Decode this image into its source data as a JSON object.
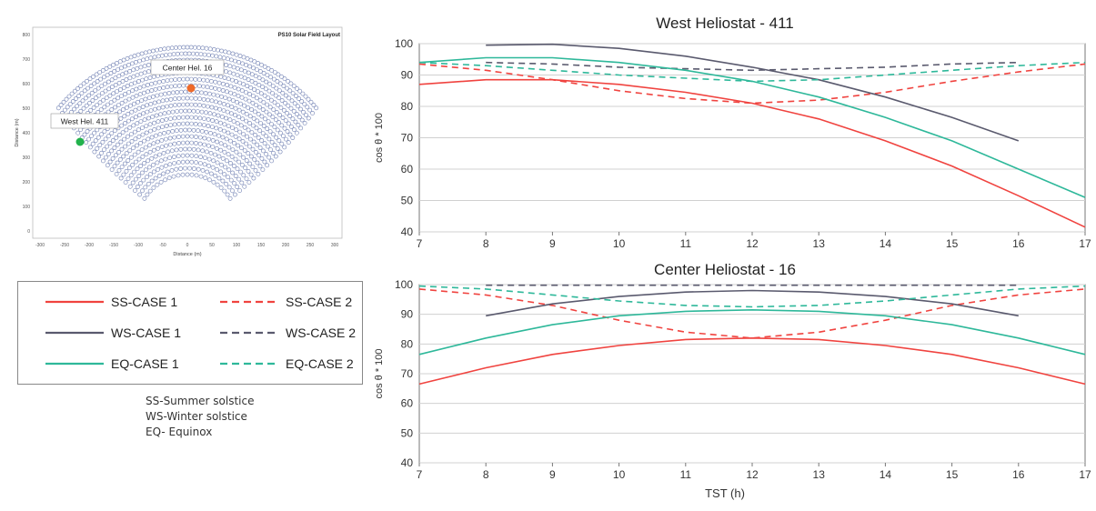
{
  "colors": {
    "ss": "#f0433f",
    "ws": "#5a5a6e",
    "eq": "#2eb89a",
    "field_dot": "#6f7fb2",
    "west_marker": "#22b24c",
    "center_marker": "#ee6a2a",
    "grid": "#d0d0d0"
  },
  "field_layout": {
    "title": "PS10 Solar Field Layout",
    "xlabel": "Distance (m)",
    "ylabel": "Distance (m)",
    "x_ticks": [
      "-300",
      "-250",
      "-200",
      "-150",
      "-100",
      "-50",
      "0",
      "50",
      "100",
      "150",
      "200",
      "250",
      "300"
    ],
    "y_ticks": [
      "0",
      "100",
      "200",
      "300",
      "400",
      "500",
      "600",
      "700",
      "800"
    ],
    "annotations": [
      {
        "key": "center",
        "label": "Center Hel. 16"
      },
      {
        "key": "west",
        "label": "West Hel. 411"
      }
    ]
  },
  "legend": {
    "entries": [
      {
        "label": "SS-CASE 1",
        "series": "ss",
        "dash": false
      },
      {
        "label": "SS-CASE 2",
        "series": "ss",
        "dash": true
      },
      {
        "label": "WS-CASE 1",
        "series": "ws",
        "dash": false
      },
      {
        "label": "WS-CASE 2",
        "series": "ws",
        "dash": true
      },
      {
        "label": "EQ-CASE 1",
        "series": "eq",
        "dash": false
      },
      {
        "label": "EQ-CASE 2",
        "series": "eq",
        "dash": true
      }
    ]
  },
  "notes": [
    "SS-Summer solstice",
    "WS-Winter solstice",
    "EQ- Equinox"
  ],
  "chart_data": [
    {
      "type": "line",
      "title": "West Heliostat - 411",
      "xlabel": "",
      "ylabel": "cos θ * 100",
      "xlim": [
        7,
        17
      ],
      "ylim": [
        40,
        100
      ],
      "x_ticks": [
        7,
        8,
        9,
        10,
        11,
        12,
        13,
        14,
        15,
        16,
        17
      ],
      "y_ticks": [
        40,
        50,
        60,
        70,
        80,
        90,
        100
      ],
      "series": [
        {
          "name": "SS-CASE 1",
          "color_key": "ss",
          "dash": false,
          "x": [
            7,
            8,
            9,
            10,
            11,
            12,
            13,
            14,
            15,
            16,
            17
          ],
          "y": [
            87,
            88.5,
            88.5,
            87,
            84.5,
            81,
            76,
            69,
            61,
            51.5,
            41.5
          ]
        },
        {
          "name": "SS-CASE 2",
          "color_key": "ss",
          "dash": true,
          "x": [
            7,
            8,
            9,
            10,
            11,
            12,
            13,
            14,
            15,
            16,
            17
          ],
          "y": [
            93.5,
            91.5,
            88.5,
            85,
            82.5,
            81,
            82,
            84.5,
            88,
            91,
            93.5
          ]
        },
        {
          "name": "WS-CASE 1",
          "color_key": "ws",
          "dash": false,
          "x": [
            8,
            9,
            10,
            11,
            12,
            13,
            14,
            15,
            16
          ],
          "y": [
            99.5,
            99.8,
            98.5,
            96,
            92.5,
            88.5,
            83,
            76.5,
            69
          ]
        },
        {
          "name": "WS-CASE 2",
          "color_key": "ws",
          "dash": true,
          "x": [
            8,
            9,
            10,
            11,
            12,
            13,
            14,
            15,
            16
          ],
          "y": [
            94,
            93.5,
            92.5,
            92,
            91.5,
            92,
            92.5,
            93.5,
            94
          ]
        },
        {
          "name": "EQ-CASE 1",
          "color_key": "eq",
          "dash": false,
          "x": [
            7,
            8,
            9,
            10,
            11,
            12,
            13,
            14,
            15,
            16,
            17
          ],
          "y": [
            94,
            95.5,
            95.5,
            94,
            91.5,
            88,
            83,
            76.5,
            69,
            60,
            51
          ]
        },
        {
          "name": "EQ-CASE 2",
          "color_key": "eq",
          "dash": true,
          "x": [
            7,
            8,
            9,
            10,
            11,
            12,
            13,
            14,
            15,
            16,
            17
          ],
          "y": [
            94,
            93,
            91.5,
            90,
            89,
            88,
            88.5,
            90,
            91.5,
            93,
            94
          ]
        }
      ]
    },
    {
      "type": "line",
      "title": "Center Heliostat - 16",
      "xlabel": "TST (h)",
      "ylabel": "cos θ * 100",
      "xlim": [
        7,
        17
      ],
      "ylim": [
        40,
        100
      ],
      "x_ticks": [
        7,
        8,
        9,
        10,
        11,
        12,
        13,
        14,
        15,
        16,
        17
      ],
      "y_ticks": [
        40,
        50,
        60,
        70,
        80,
        90,
        100
      ],
      "series": [
        {
          "name": "SS-CASE 1",
          "color_key": "ss",
          "dash": false,
          "x": [
            7,
            8,
            9,
            10,
            11,
            12,
            13,
            14,
            15,
            16,
            17
          ],
          "y": [
            66.5,
            72,
            76.5,
            79.5,
            81.5,
            82,
            81.5,
            79.5,
            76.5,
            72,
            66.5
          ]
        },
        {
          "name": "SS-CASE 2",
          "color_key": "ss",
          "dash": true,
          "x": [
            7,
            8,
            9,
            10,
            11,
            12,
            13,
            14,
            15,
            16,
            17
          ],
          "y": [
            98.5,
            96.5,
            93,
            88,
            84,
            82,
            84,
            88,
            93,
            96.5,
            98.5
          ]
        },
        {
          "name": "WS-CASE 1",
          "color_key": "ws",
          "dash": false,
          "x": [
            8,
            9,
            10,
            11,
            12,
            13,
            14,
            15,
            16
          ],
          "y": [
            89.5,
            93.5,
            96,
            97.5,
            98,
            97.5,
            96,
            93.5,
            89.5
          ]
        },
        {
          "name": "WS-CASE 2",
          "color_key": "ws",
          "dash": true,
          "x": [
            8,
            9,
            10,
            11,
            12,
            13,
            14,
            15,
            16
          ],
          "y": [
            99.8,
            99.8,
            99.8,
            99.8,
            99.8,
            99.8,
            99.8,
            99.8,
            99.8
          ]
        },
        {
          "name": "EQ-CASE 1",
          "color_key": "eq",
          "dash": false,
          "x": [
            7,
            8,
            9,
            10,
            11,
            12,
            13,
            14,
            15,
            16,
            17
          ],
          "y": [
            76.5,
            82,
            86.5,
            89.5,
            91,
            91.5,
            91,
            89.5,
            86.5,
            82,
            76.5
          ]
        },
        {
          "name": "EQ-CASE 2",
          "color_key": "eq",
          "dash": true,
          "x": [
            7,
            8,
            9,
            10,
            11,
            12,
            13,
            14,
            15,
            16,
            17
          ],
          "y": [
            99.5,
            98.5,
            96.5,
            94.5,
            93,
            92.5,
            93,
            94.5,
            96.5,
            98.5,
            99.5
          ]
        }
      ]
    }
  ]
}
